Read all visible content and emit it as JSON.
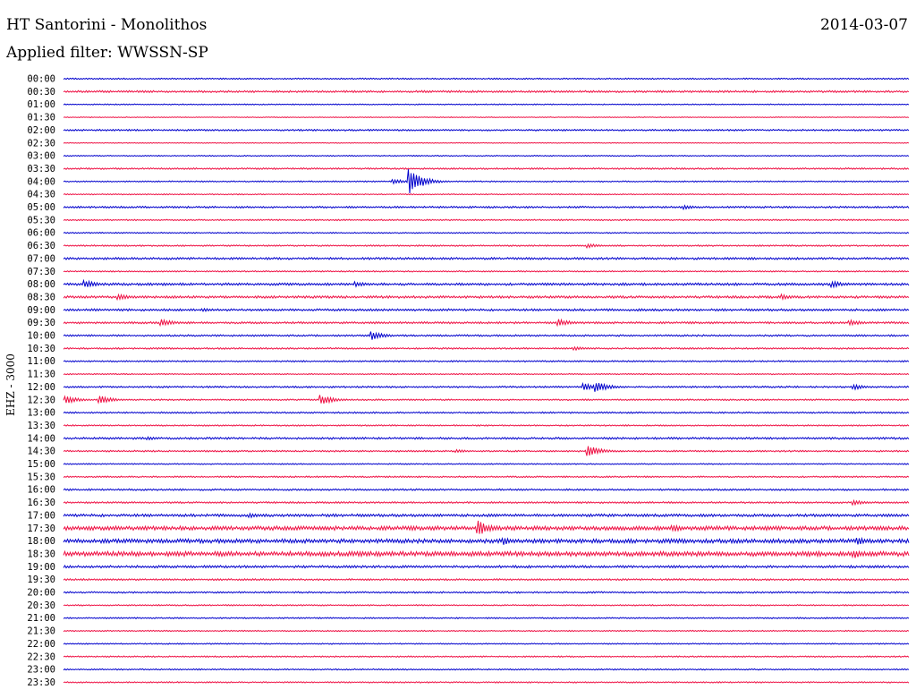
{
  "header": {
    "station": "HT Santorini - Monolithos",
    "date": "2014-03-07",
    "filter": "Applied filter: WWSSN-SP"
  },
  "channel": "EHZ - 3000",
  "colors": {
    "odd": "#0000cc",
    "even": "#ee1144"
  },
  "chart_data": {
    "type": "line",
    "title": "HT Santorini - Monolithos",
    "ylabel": "EHZ - 3000",
    "rows": [
      "00:00",
      "00:30",
      "01:00",
      "01:30",
      "02:00",
      "02:30",
      "03:00",
      "03:30",
      "04:00",
      "04:30",
      "05:00",
      "05:30",
      "06:00",
      "06:30",
      "07:00",
      "07:30",
      "08:00",
      "08:30",
      "09:00",
      "09:30",
      "10:00",
      "10:30",
      "11:00",
      "11:30",
      "12:00",
      "12:30",
      "13:00",
      "13:30",
      "14:00",
      "14:30",
      "15:00",
      "15:30",
      "16:00",
      "16:30",
      "17:00",
      "17:30",
      "18:00",
      "18:30",
      "19:00",
      "19:30",
      "20:00",
      "20:30",
      "21:00",
      "21:30",
      "22:00",
      "22:30",
      "23:00",
      "23:30"
    ],
    "row_duration_minutes": 30,
    "series_colors": [
      "blue",
      "red"
    ],
    "noise_level": [
      1,
      1.5,
      0.8,
      0.6,
      1.2,
      0.6,
      0.8,
      1.2,
      0.9,
      0.8,
      1.4,
      1,
      0.9,
      1.1,
      1.6,
      1,
      1.8,
      1.8,
      1.6,
      1.5,
      1.3,
      1.2,
      1.1,
      0.9,
      1.3,
      1.1,
      1.2,
      1,
      1.5,
      1.2,
      0.9,
      1.1,
      1.3,
      1.3,
      2,
      3,
      3,
      3.5,
      1.8,
      1.3,
      1.2,
      1,
      1,
      0.9,
      0.9,
      1,
      1,
      1
    ],
    "events": [
      {
        "row": 8,
        "x": 0.41,
        "amp": 28
      },
      {
        "row": 8,
        "x": 0.39,
        "amp": 6
      },
      {
        "row": 10,
        "x": 0.735,
        "amp": 5
      },
      {
        "row": 13,
        "x": 0.62,
        "amp": 5
      },
      {
        "row": 16,
        "x": 0.025,
        "amp": 9
      },
      {
        "row": 16,
        "x": 0.345,
        "amp": 6
      },
      {
        "row": 16,
        "x": 0.91,
        "amp": 7
      },
      {
        "row": 17,
        "x": 0.065,
        "amp": 7
      },
      {
        "row": 17,
        "x": 0.85,
        "amp": 6
      },
      {
        "row": 18,
        "x": 0.165,
        "amp": 4
      },
      {
        "row": 18,
        "x": 0.68,
        "amp": 3
      },
      {
        "row": 19,
        "x": 0.115,
        "amp": 9
      },
      {
        "row": 19,
        "x": 0.585,
        "amp": 9
      },
      {
        "row": 19,
        "x": 0.93,
        "amp": 7
      },
      {
        "row": 20,
        "x": 0.365,
        "amp": 10
      },
      {
        "row": 21,
        "x": 0.605,
        "amp": 5
      },
      {
        "row": 24,
        "x": 0.615,
        "amp": 9
      },
      {
        "row": 24,
        "x": 0.63,
        "amp": 13
      },
      {
        "row": 24,
        "x": 0.935,
        "amp": 6
      },
      {
        "row": 25,
        "x": 0.003,
        "amp": 9
      },
      {
        "row": 25,
        "x": 0.042,
        "amp": 10
      },
      {
        "row": 25,
        "x": 0.305,
        "amp": 11
      },
      {
        "row": 28,
        "x": 0.1,
        "amp": 4
      },
      {
        "row": 29,
        "x": 0.465,
        "amp": 4
      },
      {
        "row": 29,
        "x": 0.62,
        "amp": 14
      },
      {
        "row": 33,
        "x": 0.935,
        "amp": 6
      },
      {
        "row": 34,
        "x": 0.22,
        "amp": 6
      },
      {
        "row": 35,
        "x": 0.49,
        "amp": 18
      },
      {
        "row": 35,
        "x": 0.72,
        "amp": 9
      },
      {
        "row": 36,
        "x": 0.52,
        "amp": 9
      },
      {
        "row": 36,
        "x": 0.94,
        "amp": 8
      },
      {
        "row": 37,
        "x": 0.935,
        "amp": 10
      }
    ]
  }
}
